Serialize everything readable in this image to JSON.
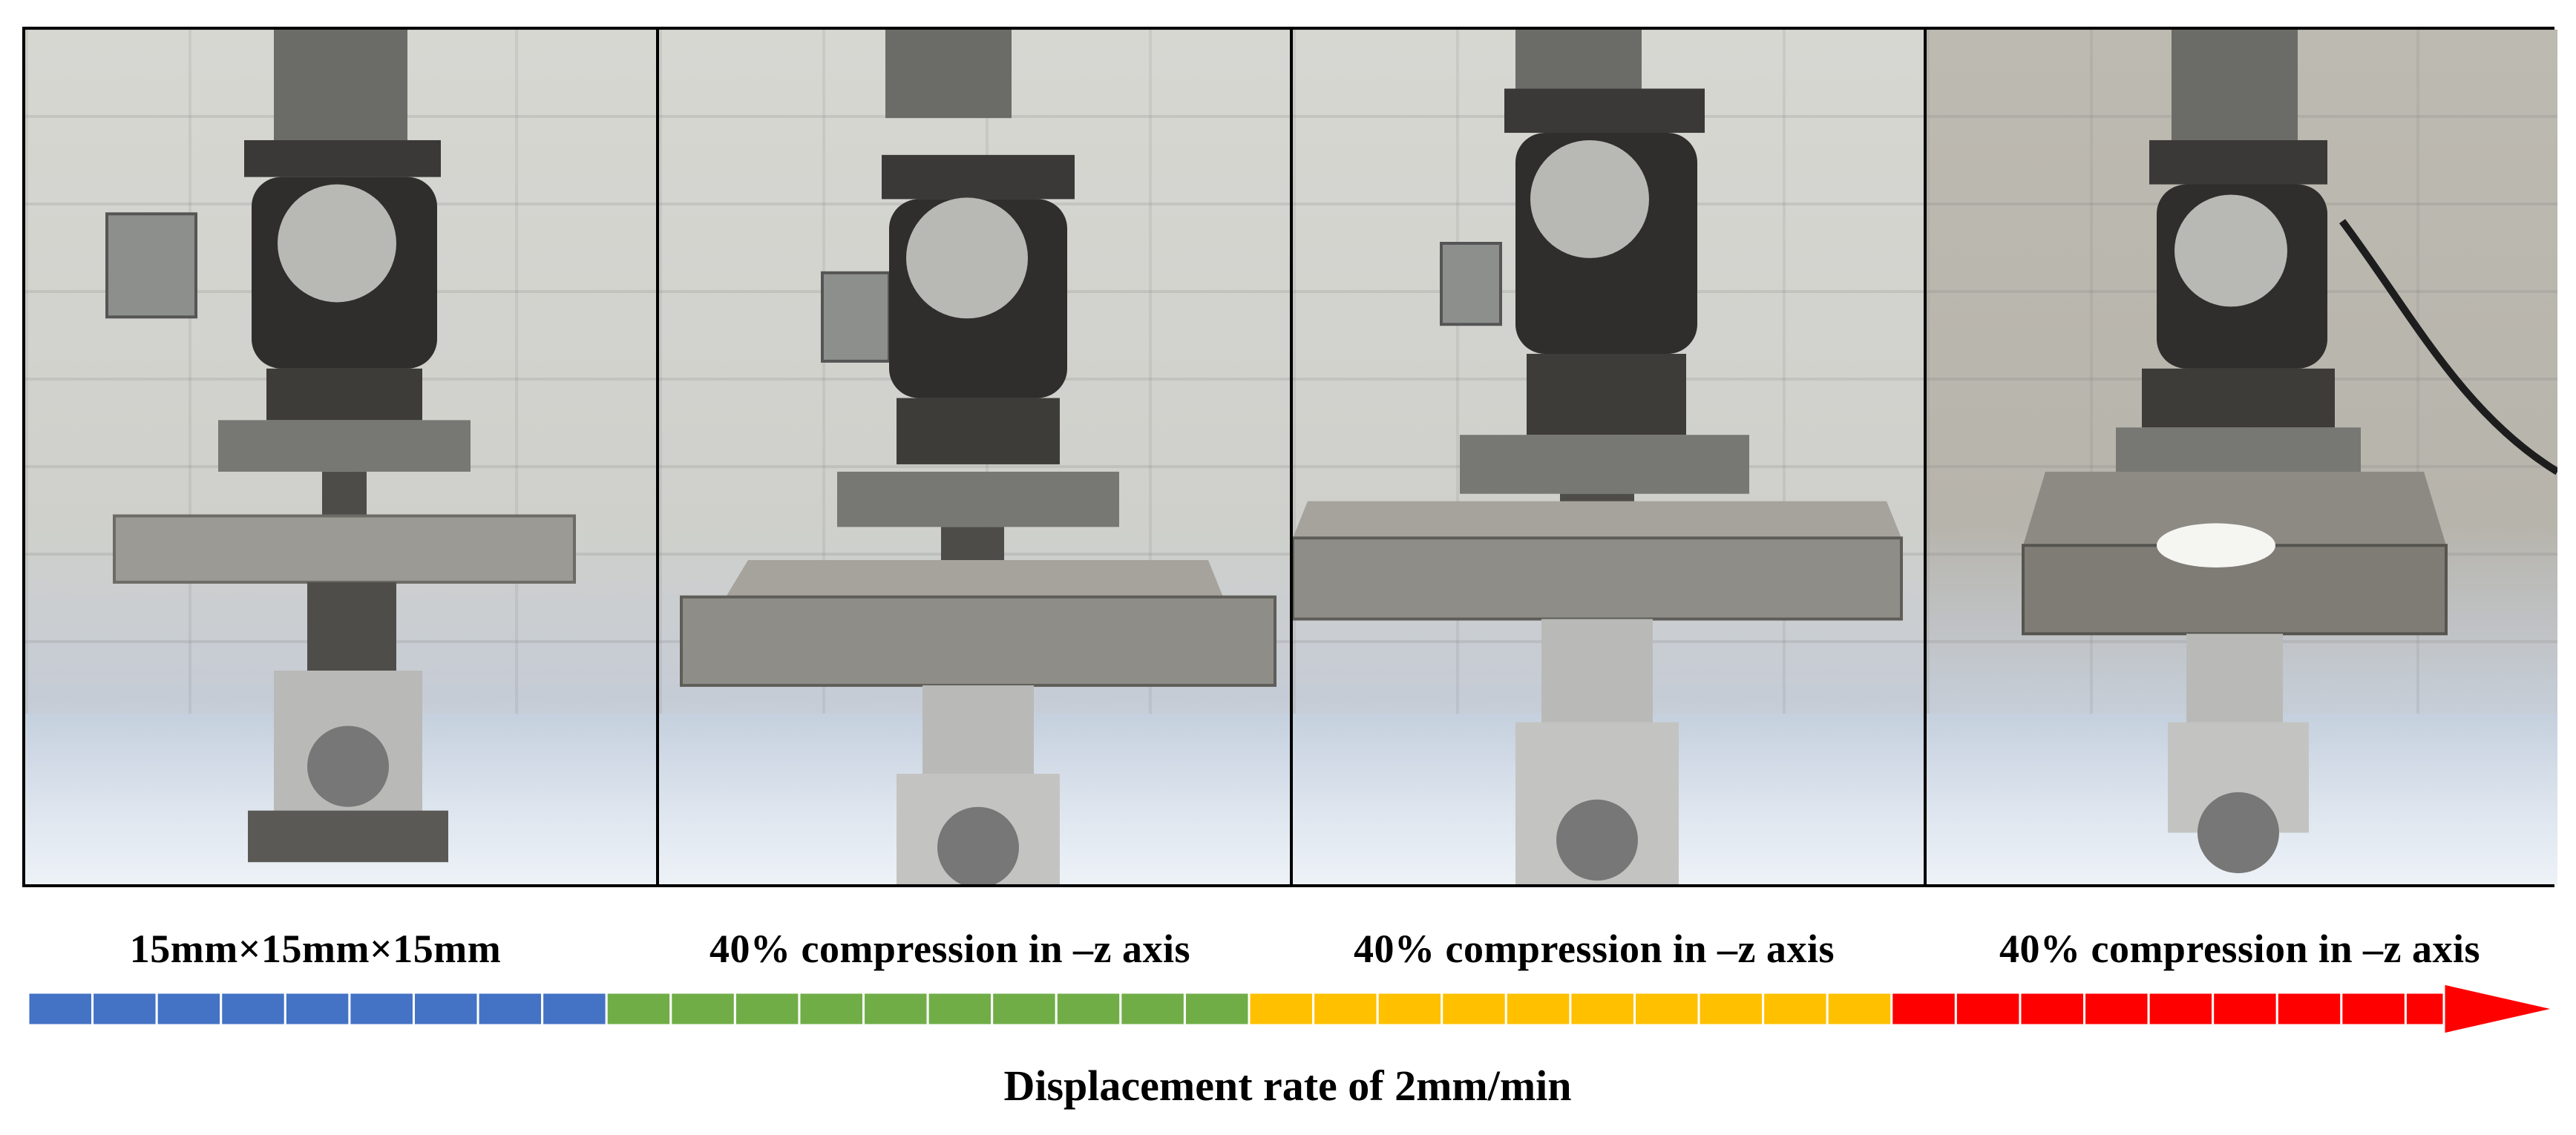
{
  "panels": [
    {
      "name": "initial-state",
      "specimen": "present"
    },
    {
      "name": "compression-stage-1",
      "specimen": "compressed"
    },
    {
      "name": "compression-stage-2",
      "specimen": "compressed"
    },
    {
      "name": "compression-stage-3",
      "specimen": "crushed-residue"
    }
  ],
  "labels": {
    "stage1": "15mm×15mm×15mm",
    "stage2": "40% compression in –z axis",
    "stage3": "40% compression in –z axis",
    "stage4": "40% compression in –z axis"
  },
  "timeline": {
    "segments": [
      {
        "color": "#4472C4",
        "cells": 9
      },
      {
        "color": "#70AD47",
        "cells": 10
      },
      {
        "color": "#FFC000",
        "cells": 10
      },
      {
        "color": "#FF0000",
        "cells": 9
      }
    ],
    "arrow_color": "#FF0000"
  },
  "caption": "Displacement rate of 2mm/min"
}
